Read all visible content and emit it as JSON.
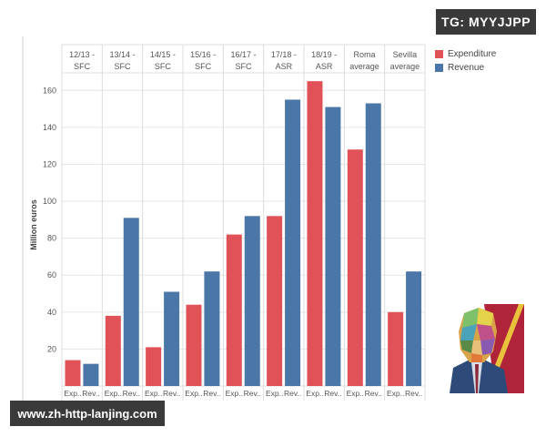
{
  "watermarks": {
    "top_right": "TG: MYYJJPP",
    "bottom_left": "www.zh-http-lanjing.com"
  },
  "chart_data": {
    "type": "bar",
    "ylabel": "Million euros",
    "ylim": [
      0,
      170
    ],
    "yticks": [
      20,
      40,
      60,
      80,
      100,
      120,
      140,
      160
    ],
    "grid": true,
    "legend_position": "top-right",
    "categories": [
      "12/13 - SFC",
      "13/14 - SFC",
      "14/15 - SFC",
      "15/16 - SFC",
      "16/17 - SFC",
      "17/18 - ASR",
      "18/19 - ASR",
      "Roma average",
      "Sevilla average"
    ],
    "category_lines": [
      [
        "12/13 -",
        "SFC"
      ],
      [
        "13/14 -",
        "SFC"
      ],
      [
        "14/15 -",
        "SFC"
      ],
      [
        "15/16 -",
        "SFC"
      ],
      [
        "16/17 -",
        "SFC"
      ],
      [
        "17/18 -",
        "ASR"
      ],
      [
        "18/19 -",
        "ASR"
      ],
      [
        "Roma",
        "average"
      ],
      [
        "Sevilla",
        "average"
      ]
    ],
    "bar_labels": [
      "Exp..",
      "Rev.."
    ],
    "series": [
      {
        "name": "Expenditure",
        "color": "#e05257",
        "values": [
          14,
          38,
          21,
          44,
          82,
          92,
          165,
          128,
          40
        ]
      },
      {
        "name": "Revenue",
        "color": "#4b77a8",
        "values": [
          12,
          91,
          51,
          62,
          92,
          155,
          151,
          153,
          62
        ]
      }
    ]
  },
  "decor": {
    "portrait_icon": "pop-art-portrait-icon"
  }
}
